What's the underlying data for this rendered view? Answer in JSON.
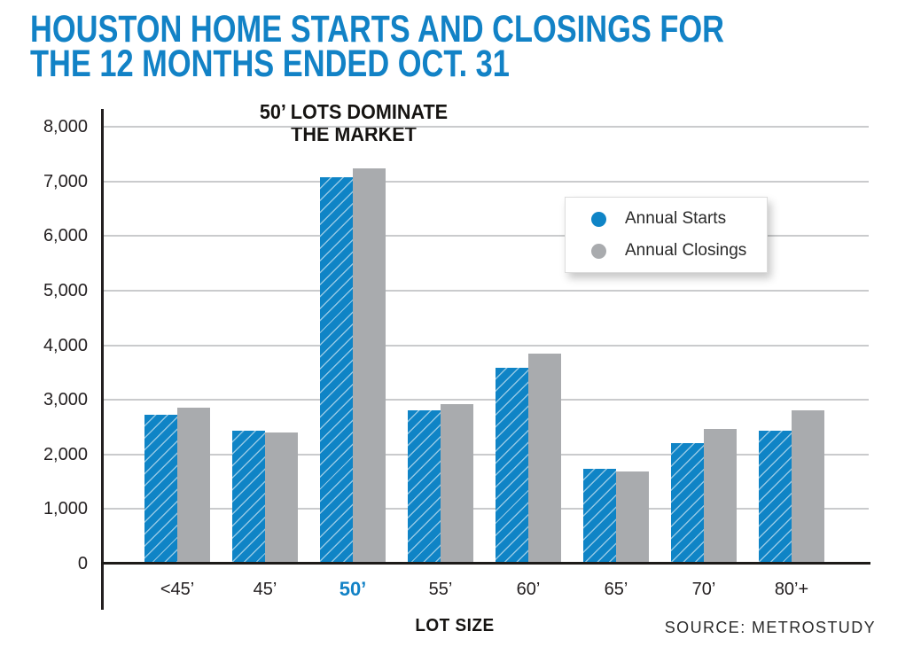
{
  "page": {
    "background": "#ffffff"
  },
  "header": {
    "title_line1": "HOUSTON HOME STARTS AND CLOSINGS FOR",
    "title_line2": "THE 12 MONTHS ENDED OCT. 31",
    "title_color": "#1282c6"
  },
  "chart_data": {
    "type": "bar",
    "title": "Houston home starts and closings for the 12 months ended Oct. 31",
    "annotation": {
      "line1": "50’ LOTS DOMINATE",
      "line2": "THE MARKET"
    },
    "categories": [
      "<45’",
      "45’",
      "50’",
      "55’",
      "60’",
      "65’",
      "70’",
      "80’+"
    ],
    "highlight_category": "50’",
    "series": [
      {
        "name": "Annual Starts",
        "color": "#0f84c6",
        "values": [
          2730,
          2440,
          7080,
          2810,
          3590,
          1740,
          2200,
          2430
        ]
      },
      {
        "name": "Annual Closings",
        "color": "#a9abae",
        "values": [
          2860,
          2400,
          7230,
          2920,
          3840,
          1690,
          2470,
          2810
        ]
      }
    ],
    "xlabel": "LOT SIZE",
    "ylabel": "",
    "ylim": [
      0,
      8000
    ],
    "ytick_step": 1000,
    "ytick_labels": [
      "0",
      "1,000",
      "2,000",
      "3,000",
      "4,000",
      "5,000",
      "6,000",
      "7,000",
      "8,000"
    ],
    "grid": true,
    "grid_color": "#cacbcd",
    "axis_color": "#231f20",
    "legend_position": "upper right"
  },
  "footer": {
    "source": "SOURCE: METROSTUDY"
  }
}
